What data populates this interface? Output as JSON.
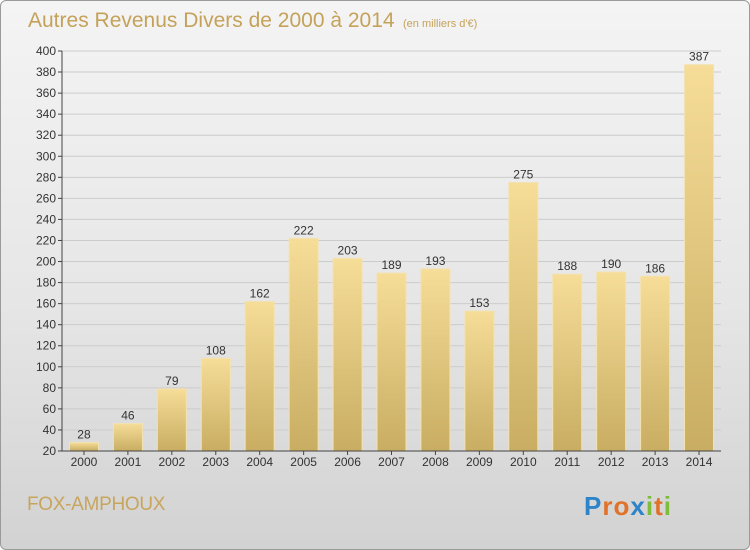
{
  "title": "Autres Revenus Divers de 2000 à 2014",
  "unit_note": "(en milliers d'€)",
  "commune": "FOX-AMPHOUX",
  "logo": {
    "letters": [
      {
        "ch": "P",
        "color": "#2e84c9"
      },
      {
        "ch": "r",
        "color": "#e0722a"
      },
      {
        "ch": "o",
        "color": "#e0722a"
      },
      {
        "ch": "x",
        "color": "#2e84c9"
      },
      {
        "ch": "i",
        "color": "#7cbd3a"
      },
      {
        "ch": "t",
        "color": "#e0722a"
      },
      {
        "ch": "i",
        "color": "#7cbd3a"
      }
    ]
  },
  "colors": {
    "title": "#c5a25a",
    "bar_top": "#f6dd98",
    "bar_bottom": "#c8ad62",
    "axis": "#444444",
    "grid": "#cccccc"
  },
  "chart_data": {
    "type": "bar",
    "categories": [
      "2000",
      "2001",
      "2002",
      "2003",
      "2004",
      "2005",
      "2006",
      "2007",
      "2008",
      "2009",
      "2010",
      "2011",
      "2012",
      "2013",
      "2014"
    ],
    "values": [
      28,
      46,
      79,
      108,
      162,
      222,
      203,
      189,
      193,
      153,
      275,
      188,
      190,
      186,
      387
    ],
    "ylim": [
      20,
      400
    ],
    "yticks": [
      20,
      40,
      60,
      80,
      100,
      120,
      140,
      160,
      180,
      200,
      220,
      240,
      260,
      280,
      300,
      320,
      340,
      360,
      380,
      400
    ],
    "grid": true
  }
}
